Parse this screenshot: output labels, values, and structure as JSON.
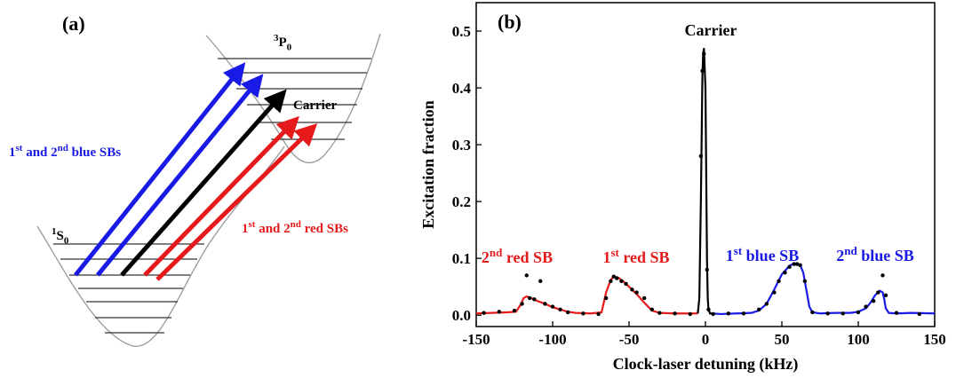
{
  "diagram": {
    "panel_label": "(a)",
    "upper_level": [
      {
        "sup": "3"
      },
      {
        "text": "P"
      },
      {
        "sub": "0"
      }
    ],
    "lower_level": [
      {
        "sup": "1"
      },
      {
        "text": "S"
      },
      {
        "sub": "0"
      }
    ],
    "carrier": "Carrier",
    "blue_label": {
      "color": "#1a1ae6",
      "parts": [
        {
          "text": "1"
        },
        {
          "sup": "st"
        },
        {
          "text": " and 2"
        },
        {
          "sup": "nd"
        },
        {
          "text": " blue SBs"
        }
      ]
    },
    "red_label": {
      "color": "#e61a1a",
      "parts": [
        {
          "text": "1"
        },
        {
          "sup": "st"
        },
        {
          "text": " and 2"
        },
        {
          "sup": "nd"
        },
        {
          "text": " red SBs"
        }
      ]
    }
  },
  "chart_data": {
    "type": "line",
    "panel_label": "(b)",
    "xlabel": "Clock-laser detuning (kHz)",
    "ylabel": "Excitation fraction",
    "xlim": [
      -150,
      150
    ],
    "ylim": [
      -0.02,
      0.55
    ],
    "xticks": [
      -150,
      -100,
      -50,
      0,
      50,
      100,
      150
    ],
    "yticks": [
      {
        "value": 0,
        "label": "0.0"
      },
      0.1,
      0.2,
      0.3,
      0.4,
      0.5
    ],
    "series": [
      {
        "color": "#e61a1a",
        "x": [
          -150,
          -140,
          -130,
          -124,
          -121,
          -119,
          -117,
          -114,
          -110,
          -105,
          -100,
          -95,
          -90,
          -85,
          -75,
          -68,
          -65,
          -62,
          -60,
          -57,
          -54,
          -50,
          -45,
          -40,
          -35,
          -30,
          -20,
          -10,
          -5
        ],
        "values": [
          0.003,
          0.004,
          0.005,
          0.006,
          0.018,
          0.03,
          0.033,
          0.03,
          0.025,
          0.02,
          0.014,
          0.01,
          0.006,
          0.004,
          0.003,
          0.005,
          0.04,
          0.062,
          0.068,
          0.066,
          0.06,
          0.05,
          0.037,
          0.022,
          0.008,
          0.004,
          0.003,
          0.003,
          0.003
        ]
      },
      {
        "color": "#000000",
        "x": [
          -5,
          -4,
          -3,
          -2,
          -1.5,
          -1,
          0,
          0.5,
          1,
          1.5,
          2,
          3,
          4
        ],
        "values": [
          0.003,
          0.03,
          0.2,
          0.42,
          0.46,
          0.47,
          0.4,
          0.25,
          0.1,
          0.03,
          0.01,
          0.003,
          0.003
        ]
      },
      {
        "color": "#1a1ae6",
        "x": [
          4,
          10,
          20,
          30,
          35,
          40,
          45,
          50,
          55,
          58,
          62,
          64,
          66,
          68,
          70,
          75,
          85,
          95,
          100,
          105,
          108,
          111,
          114,
          116,
          117,
          118,
          120,
          125,
          135,
          150
        ],
        "values": [
          0.003,
          0.002,
          0.003,
          0.004,
          0.008,
          0.02,
          0.045,
          0.072,
          0.087,
          0.091,
          0.088,
          0.075,
          0.045,
          0.015,
          0.005,
          0.003,
          0.004,
          0.004,
          0.006,
          0.012,
          0.022,
          0.035,
          0.043,
          0.04,
          0.028,
          0.012,
          0.004,
          0.003,
          0.004,
          0.003
        ]
      }
    ],
    "points": {
      "color": "#000000",
      "x": [
        -145,
        -135,
        -125,
        -120,
        -117,
        -115,
        -112,
        -108,
        -105,
        -100,
        -95,
        -90,
        -80,
        -70,
        -65,
        -62,
        -60,
        -58,
        -55,
        -52,
        -48,
        -45,
        -40,
        -35,
        -30,
        -20,
        -10,
        -3,
        -2,
        -1,
        1,
        2,
        5,
        15,
        25,
        35,
        40,
        45,
        48,
        52,
        55,
        58,
        60,
        62,
        65,
        70,
        80,
        90,
        100,
        105,
        110,
        113,
        116,
        118,
        125,
        140
      ],
      "values": [
        0.004,
        0.006,
        0.008,
        0.02,
        0.07,
        0.03,
        0.028,
        0.06,
        0.02,
        0.015,
        0.01,
        0.005,
        0.003,
        0.002,
        0.03,
        0.06,
        0.068,
        0.065,
        0.06,
        0.055,
        0.045,
        0.04,
        0.03,
        0.01,
        0.004,
        0.003,
        0.002,
        0.28,
        0.43,
        0.46,
        0.08,
        0.01,
        0.002,
        0.003,
        0.003,
        0.01,
        0.02,
        0.04,
        0.06,
        0.075,
        0.085,
        0.09,
        0.09,
        0.088,
        0.06,
        0.005,
        0.003,
        0.003,
        0.005,
        0.015,
        0.025,
        0.04,
        0.07,
        0.035,
        0.004,
        0.002
      ]
    },
    "annotations": [
      {
        "color": "#000000",
        "parts": [
          {
            "text": "Carrier"
          }
        ]
      },
      {
        "color": "#e61a1a",
        "parts": [
          {
            "text": "2"
          },
          {
            "sup": "nd"
          },
          {
            "text": " red SB"
          }
        ]
      },
      {
        "color": "#e61a1a",
        "parts": [
          {
            "text": "1"
          },
          {
            "sup": "st"
          },
          {
            "text": " red SB"
          }
        ]
      },
      {
        "color": "#1a1ae6",
        "parts": [
          {
            "text": "1"
          },
          {
            "sup": "st"
          },
          {
            "text": " blue SB"
          }
        ]
      },
      {
        "color": "#1a1ae6",
        "parts": [
          {
            "text": "2"
          },
          {
            "sup": "nd"
          },
          {
            "text": " blue SB"
          }
        ]
      }
    ]
  }
}
